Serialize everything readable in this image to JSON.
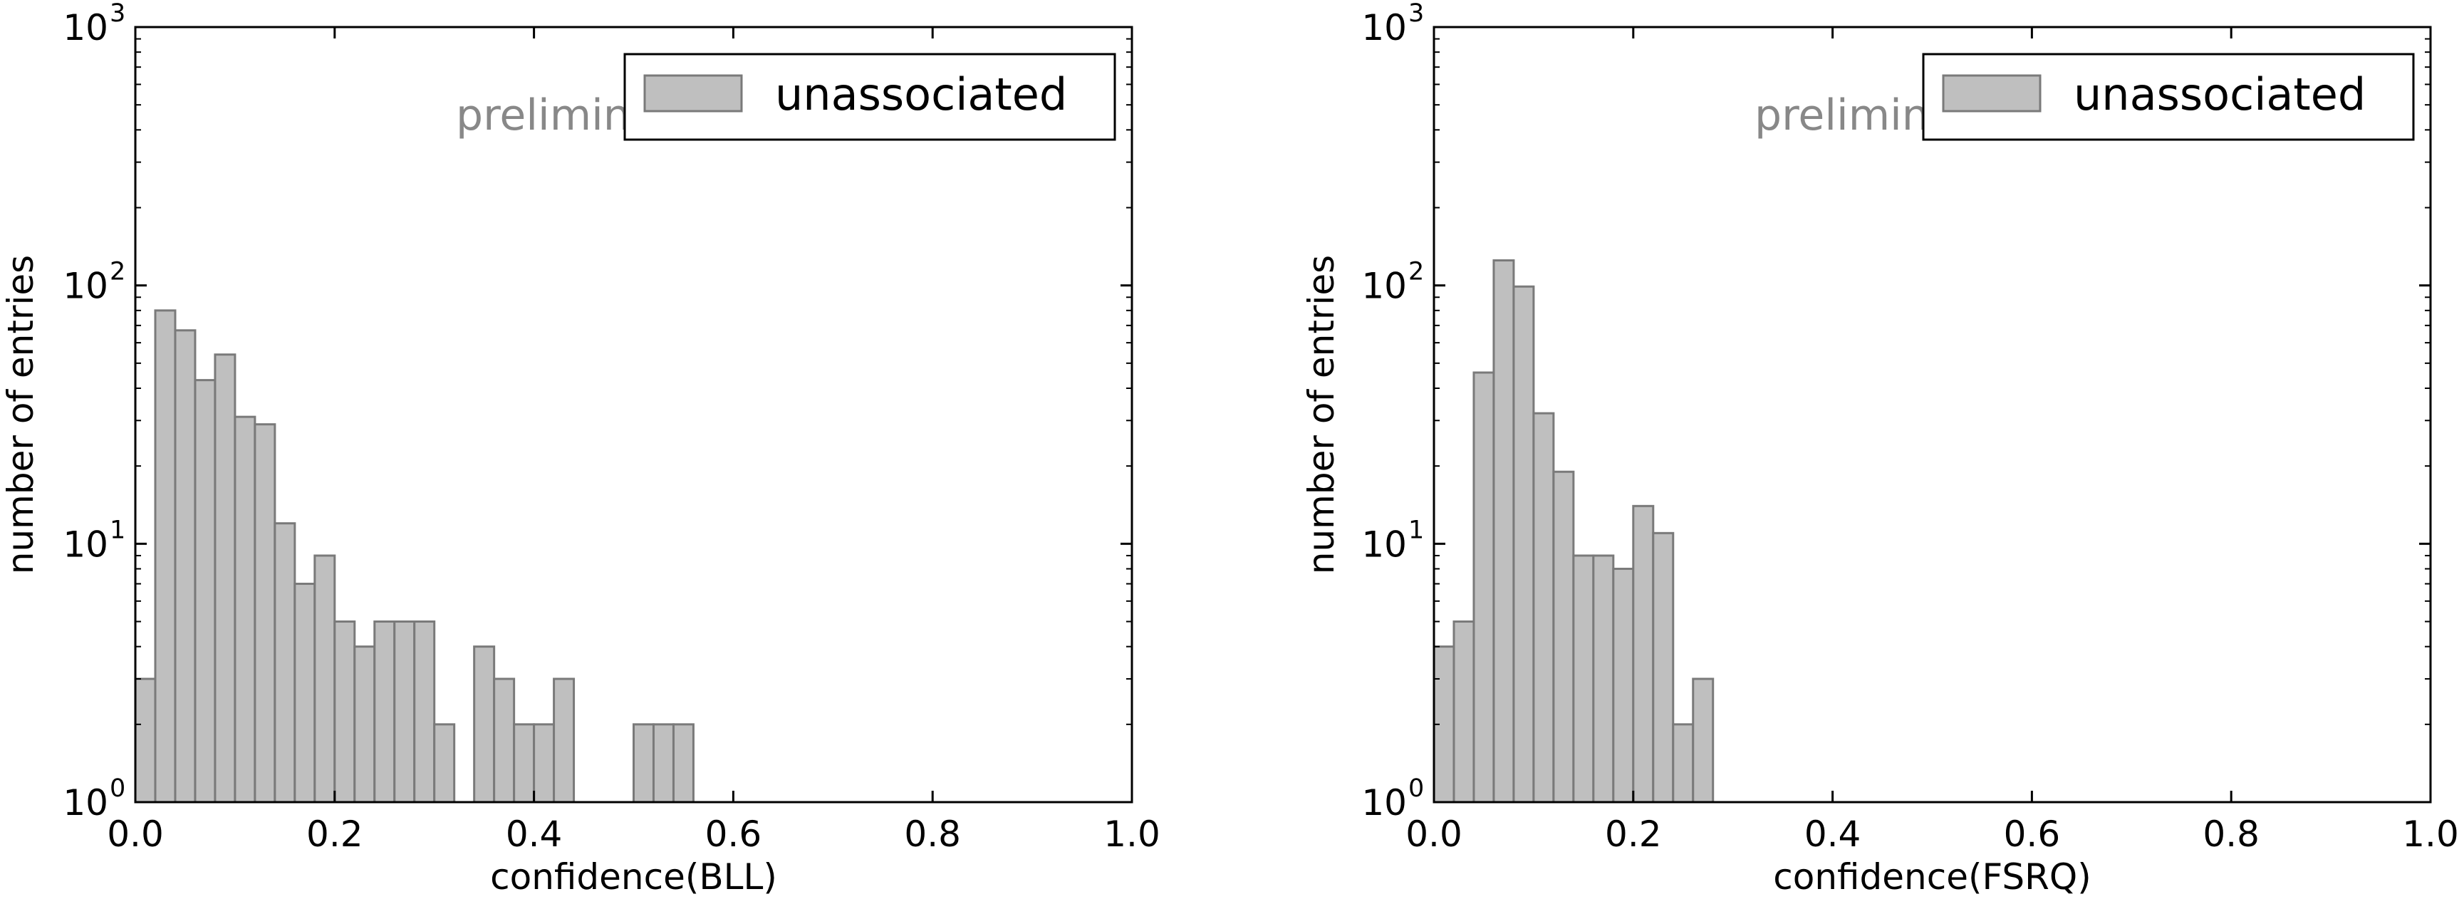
{
  "chart_data": [
    {
      "type": "bar",
      "xlabel": "confidence(BLL)",
      "ylabel": "number of entries",
      "xlim": [
        0.0,
        1.0
      ],
      "ylim": [
        1,
        1000
      ],
      "yscale": "log",
      "xticks": [
        "0.0",
        "0.2",
        "0.4",
        "0.6",
        "0.8",
        "1.0"
      ],
      "yticks": [
        {
          "base": "10",
          "exp": "0"
        },
        {
          "base": "10",
          "exp": "1"
        },
        {
          "base": "10",
          "exp": "2"
        },
        {
          "base": "10",
          "exp": "3"
        }
      ],
      "annotation": "preliminary",
      "legend": {
        "label": "unassociated",
        "placement": "top-right"
      },
      "bin_width": 0.02,
      "bins": [
        {
          "x": 0.0,
          "v": 3
        },
        {
          "x": 0.02,
          "v": 80
        },
        {
          "x": 0.04,
          "v": 67
        },
        {
          "x": 0.06,
          "v": 43
        },
        {
          "x": 0.08,
          "v": 54
        },
        {
          "x": 0.1,
          "v": 31
        },
        {
          "x": 0.12,
          "v": 29
        },
        {
          "x": 0.14,
          "v": 12
        },
        {
          "x": 0.16,
          "v": 7
        },
        {
          "x": 0.18,
          "v": 9
        },
        {
          "x": 0.2,
          "v": 5
        },
        {
          "x": 0.22,
          "v": 4
        },
        {
          "x": 0.24,
          "v": 5
        },
        {
          "x": 0.26,
          "v": 5
        },
        {
          "x": 0.28,
          "v": 5
        },
        {
          "x": 0.3,
          "v": 2
        },
        {
          "x": 0.34,
          "v": 4
        },
        {
          "x": 0.36,
          "v": 3
        },
        {
          "x": 0.38,
          "v": 2
        },
        {
          "x": 0.4,
          "v": 2
        },
        {
          "x": 0.42,
          "v": 3
        },
        {
          "x": 0.5,
          "v": 2
        },
        {
          "x": 0.52,
          "v": 2
        },
        {
          "x": 0.54,
          "v": 2
        }
      ]
    },
    {
      "type": "bar",
      "xlabel": "confidence(FSRQ)",
      "ylabel": "number of entries",
      "xlim": [
        0.0,
        1.0
      ],
      "ylim": [
        1,
        1000
      ],
      "yscale": "log",
      "xticks": [
        "0.0",
        "0.2",
        "0.4",
        "0.6",
        "0.8",
        "1.0"
      ],
      "yticks": [
        {
          "base": "10",
          "exp": "0"
        },
        {
          "base": "10",
          "exp": "1"
        },
        {
          "base": "10",
          "exp": "2"
        },
        {
          "base": "10",
          "exp": "3"
        }
      ],
      "annotation": "preliminary",
      "legend": {
        "label": "unassociated",
        "placement": "top-right"
      },
      "bin_width": 0.02,
      "bins": [
        {
          "x": 0.0,
          "v": 4
        },
        {
          "x": 0.02,
          "v": 5
        },
        {
          "x": 0.04,
          "v": 46
        },
        {
          "x": 0.06,
          "v": 125
        },
        {
          "x": 0.08,
          "v": 99
        },
        {
          "x": 0.1,
          "v": 32
        },
        {
          "x": 0.12,
          "v": 19
        },
        {
          "x": 0.14,
          "v": 9
        },
        {
          "x": 0.16,
          "v": 9
        },
        {
          "x": 0.18,
          "v": 8
        },
        {
          "x": 0.2,
          "v": 14
        },
        {
          "x": 0.22,
          "v": 11
        },
        {
          "x": 0.24,
          "v": 2
        },
        {
          "x": 0.26,
          "v": 3
        }
      ]
    }
  ],
  "colors": {
    "bar_fill": "#bfbfbf",
    "bar_edge": "#7a7a7a",
    "annotation": "#888888",
    "axis": "#000000"
  }
}
